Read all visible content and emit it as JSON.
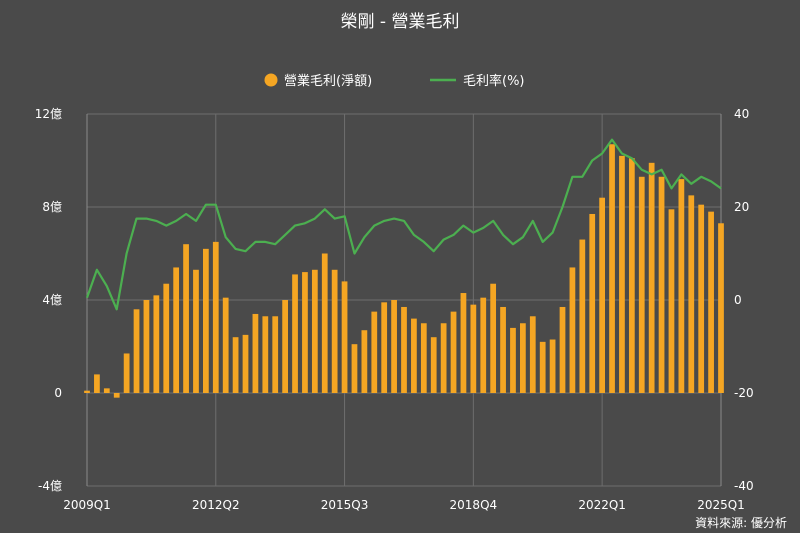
{
  "title": "榮剛 - 營業毛利",
  "source_text": "資料來源: 優分析",
  "colors": {
    "background": "#4a4a4a",
    "bar": "#f5a623",
    "line": "#4caf50",
    "grid": "#6e6e6e",
    "text": "#ffffff"
  },
  "chart_data": {
    "type": "bar+line",
    "title": "榮剛 - 營業毛利",
    "legend": {
      "position": "top-center",
      "items": [
        {
          "label": "營業毛利(淨額)",
          "marker": "circle",
          "color": "#f5a623"
        },
        {
          "label": "毛利率(%)",
          "marker": "line",
          "color": "#4caf50"
        }
      ]
    },
    "grid": true,
    "left_axis": {
      "range": [
        -4,
        12
      ],
      "ticks": [
        -4,
        0,
        4,
        8,
        12
      ],
      "tick_labels": [
        "-4億",
        "0",
        "4億",
        "8億",
        "12億"
      ]
    },
    "right_axis": {
      "range": [
        -40,
        40
      ],
      "ticks": [
        -40,
        -20,
        0,
        20,
        40
      ],
      "tick_labels": [
        "-40",
        "-20",
        "0",
        "20",
        "40"
      ]
    },
    "x_tick_labels": [
      {
        "index": 0,
        "label": "2009Q1"
      },
      {
        "index": 13,
        "label": "2012Q2"
      },
      {
        "index": 26,
        "label": "2015Q3"
      },
      {
        "index": 39,
        "label": "2018Q4"
      },
      {
        "index": 52,
        "label": "2022Q1"
      },
      {
        "index": 64,
        "label": "2025Q1"
      }
    ],
    "series": [
      {
        "name": "營業毛利(淨額)",
        "type": "bar",
        "axis": "left",
        "unit": "億",
        "values": [
          0.1,
          0.8,
          0.2,
          -0.2,
          1.7,
          3.6,
          4.0,
          4.2,
          4.7,
          5.4,
          6.4,
          5.3,
          6.2,
          6.5,
          4.1,
          2.4,
          2.5,
          3.4,
          3.3,
          3.3,
          4.0,
          5.1,
          5.2,
          5.3,
          6.0,
          5.3,
          4.8,
          2.1,
          2.7,
          3.5,
          3.9,
          4.0,
          3.7,
          3.2,
          3.0,
          2.4,
          3.0,
          3.5,
          4.3,
          3.8,
          4.1,
          4.7,
          3.7,
          2.8,
          3.0,
          3.3,
          2.2,
          2.3,
          3.7,
          5.4,
          6.6,
          7.7,
          8.4,
          10.7,
          10.2,
          10.1,
          9.3,
          9.9,
          9.3,
          7.9,
          9.2,
          8.5,
          8.1,
          7.8,
          7.3
        ]
      },
      {
        "name": "毛利率(%)",
        "type": "line",
        "axis": "right",
        "unit": "%",
        "values": [
          0.5,
          6.5,
          3.0,
          -2.0,
          10.0,
          17.5,
          17.5,
          17.0,
          16.0,
          17.0,
          18.5,
          17.0,
          20.5,
          20.5,
          13.5,
          11.0,
          10.5,
          12.5,
          12.5,
          12.0,
          14.0,
          16.0,
          16.5,
          17.5,
          19.5,
          17.5,
          18.0,
          10.0,
          13.5,
          16.0,
          17.0,
          17.5,
          17.0,
          14.0,
          12.5,
          10.5,
          13.0,
          14.0,
          16.0,
          14.5,
          15.5,
          17.0,
          14.0,
          12.0,
          13.5,
          17.0,
          12.5,
          14.5,
          20.0,
          26.5,
          26.5,
          30.0,
          31.5,
          34.5,
          31.5,
          30.5,
          28.0,
          27.0,
          28.0,
          24.0,
          27.0,
          25.0,
          26.5,
          25.5,
          24.0
        ]
      }
    ]
  }
}
